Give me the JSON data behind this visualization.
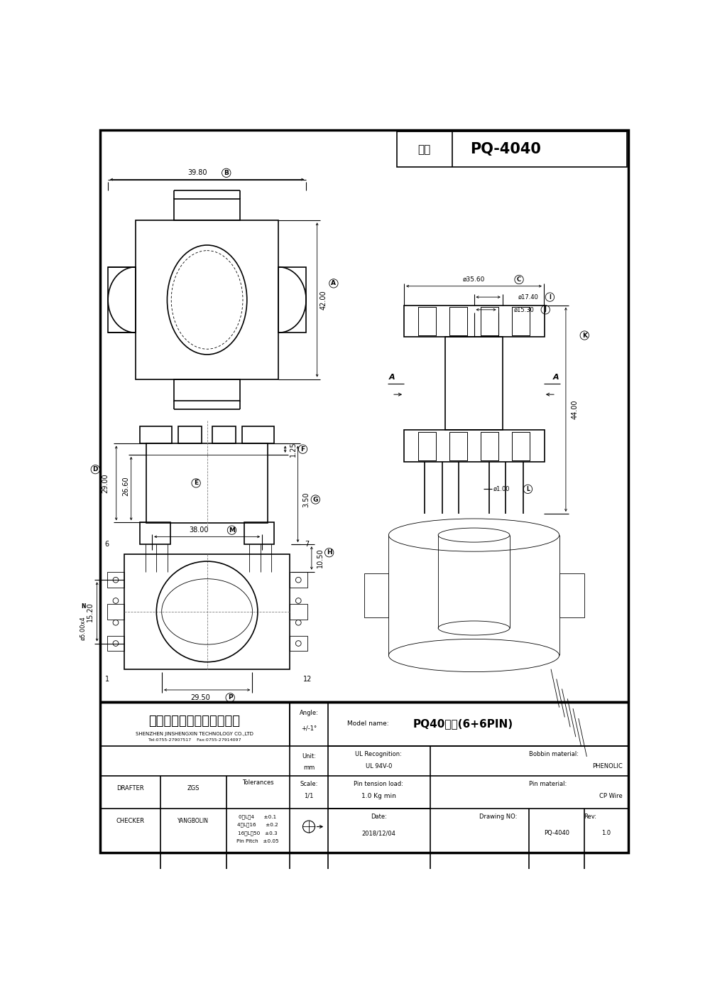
{
  "model_number": "PQ-4040",
  "company_chinese": "深圳市金盛鑫科技有限公司",
  "company_english": "SHENZHEN JINSHENGXIN TECHNOLOGY CO.,LTD",
  "tel_fax": "Tel:0755-27907517    Fax:0755-27914097",
  "model_name": "PQ40立式(6+6PIN)",
  "ul_recognition": "UL 94V-0",
  "bobbin_material": "PHENOLIC",
  "pin_tension_load": "1.0 Kg min",
  "pin_material": "CP Wire",
  "date": "2018/12/04",
  "drawing_no": "PQ-4040",
  "rev": "1.0",
  "angle": "+/-1°",
  "unit": "mm",
  "scale": "1/1",
  "drafter": "ZGS",
  "checker": "YANGBOLIN",
  "bg_color": "#ffffff",
  "line_color": "#000000"
}
